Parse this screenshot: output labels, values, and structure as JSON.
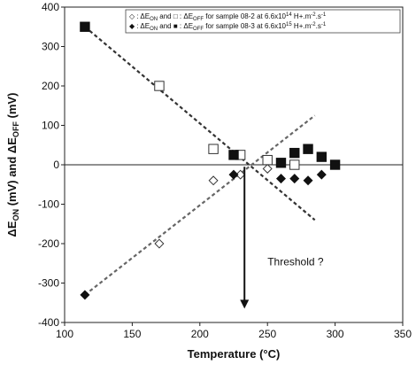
{
  "chart_data": {
    "type": "scatter",
    "title": "",
    "xlabel": "Temperature (°C)",
    "ylabel_parts": [
      {
        "t": "ΔE",
        "sub": ""
      },
      {
        "t": "ON",
        "sub": "sub"
      },
      {
        "t": " (mV) and ΔE",
        "sub": ""
      },
      {
        "t": "OFF",
        "sub": "sub"
      },
      {
        "t": " (mV)",
        "sub": ""
      }
    ],
    "xlim": [
      100,
      350
    ],
    "ylim": [
      -400,
      400
    ],
    "xticks": [
      100,
      150,
      200,
      250,
      300,
      350
    ],
    "yticks": [
      -400,
      -300,
      -200,
      -100,
      0,
      100,
      200,
      300,
      400
    ],
    "xtick_labels": [
      "100",
      "150",
      "200",
      "250",
      "300",
      "350"
    ],
    "ytick_labels": [
      "-400",
      "-300",
      "-200",
      "-100",
      "0",
      "100",
      "200",
      "300",
      "400"
    ],
    "grid": false,
    "zero_line": true,
    "legend_position": "top-right",
    "legend_lines": [
      {
        "runs": [
          {
            "t": "◇ : ΔE"
          },
          {
            "t": "ON",
            "sub": true
          },
          {
            "t": " and □ : ΔE"
          },
          {
            "t": "OFF",
            "sub": true
          },
          {
            "t": " for sample 08-2 at 6.6x10"
          },
          {
            "t": "14",
            "sup": true
          },
          {
            "t": " H+.m"
          },
          {
            "t": "-2",
            "sup": true
          },
          {
            "t": ".s"
          },
          {
            "t": "-1",
            "sup": true
          }
        ]
      },
      {
        "runs": [
          {
            "t": "◆ : ΔE"
          },
          {
            "t": "ON",
            "sub": true
          },
          {
            "t": " and ■ : ΔE"
          },
          {
            "t": "OFF",
            "sub": true
          },
          {
            "t": " for sample 08-3 at 6.6x10"
          },
          {
            "t": "15",
            "sup": true
          },
          {
            "t": " H+.m"
          },
          {
            "t": "-2",
            "sup": true
          },
          {
            "t": ".s"
          },
          {
            "t": "-1",
            "sup": true
          }
        ]
      }
    ],
    "series": [
      {
        "marker": "diamond-open",
        "color": "#333333",
        "points": [
          [
            170,
            -200
          ],
          [
            210,
            -40
          ],
          [
            230,
            -25
          ],
          [
            250,
            -10
          ]
        ]
      },
      {
        "marker": "square-open",
        "color": "#333333",
        "points": [
          [
            170,
            200
          ],
          [
            210,
            40
          ],
          [
            230,
            25
          ],
          [
            250,
            12
          ],
          [
            270,
            0
          ]
        ]
      },
      {
        "marker": "diamond-filled",
        "color": "#111111",
        "points": [
          [
            115,
            -330
          ],
          [
            225,
            -25
          ],
          [
            260,
            -35
          ],
          [
            270,
            -35
          ],
          [
            280,
            -40
          ],
          [
            290,
            -25
          ]
        ]
      },
      {
        "marker": "square-filled",
        "color": "#111111",
        "points": [
          [
            115,
            350
          ],
          [
            225,
            25
          ],
          [
            260,
            5
          ],
          [
            270,
            30
          ],
          [
            280,
            40
          ],
          [
            290,
            20
          ],
          [
            300,
            0
          ]
        ]
      }
    ],
    "trend_lines": [
      {
        "x1": 115,
        "y1": 350,
        "x2": 285,
        "y2": -140,
        "color": "#333333"
      },
      {
        "x1": 115,
        "y1": -330,
        "x2": 285,
        "y2": 125,
        "color": "#666666"
      }
    ],
    "annotation": {
      "text": "Threshold ?",
      "arrow_x": 233,
      "arrow_y_start": -5,
      "arrow_y_end": -365,
      "text_x": 250,
      "text_y": -255
    }
  }
}
